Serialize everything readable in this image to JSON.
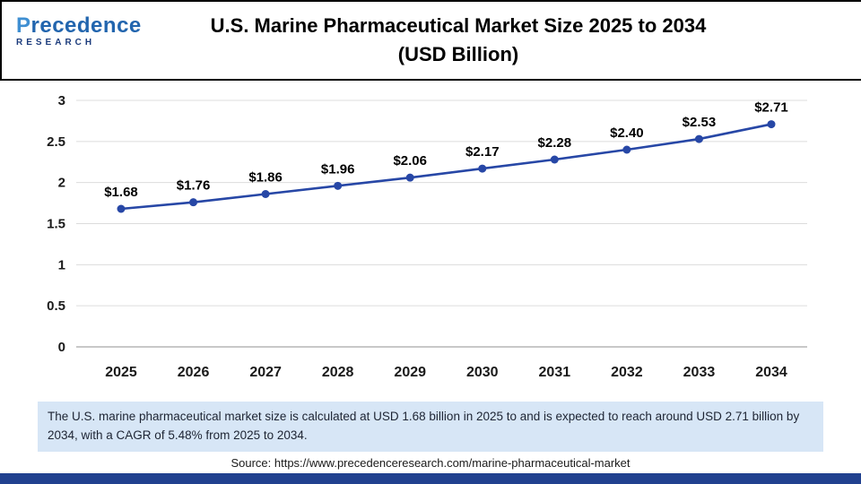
{
  "header": {
    "logo": {
      "name": "Precedence",
      "sub": "RESEARCH"
    },
    "title_line1": "U.S. Marine Pharmaceutical Market Size 2025 to 2034",
    "title_line2": "(USD Billion)"
  },
  "chart_data": {
    "type": "line",
    "title": "U.S. Marine Pharmaceutical Market Size 2025 to 2034 (USD Billion)",
    "categories": [
      "2025",
      "2026",
      "2027",
      "2028",
      "2029",
      "2030",
      "2031",
      "2032",
      "2033",
      "2034"
    ],
    "values": [
      1.68,
      1.76,
      1.86,
      1.96,
      2.06,
      2.17,
      2.28,
      2.4,
      2.53,
      2.71
    ],
    "point_labels": [
      "$1.68",
      "$1.76",
      "$1.86",
      "$1.96",
      "$2.06",
      "$2.17",
      "$2.28",
      "$2.40",
      "$2.53",
      "$2.71"
    ],
    "xlabel": "",
    "ylabel": "",
    "ylim": [
      0,
      3
    ],
    "yticks": [
      0,
      0.5,
      1,
      1.5,
      2,
      2.5,
      3
    ],
    "ytick_labels": [
      "0",
      "0.5",
      "1",
      "1.5",
      "2",
      "2.5",
      "3"
    ],
    "grid": true,
    "legend": "none",
    "line_color": "#2747a6",
    "marker": "circle"
  },
  "note": "The U.S. marine pharmaceutical market size is calculated at USD 1.68 billion in 2025 to and is expected to reach around USD 2.71 billion by 2034, with a CAGR of 5.48% from 2025 to 2034.",
  "source": "Source: https://www.precedenceresearch.com/marine-pharmaceutical-market",
  "colors": {
    "accent": "#2747a6",
    "note_bg": "#d7e6f6",
    "footer_bar": "#21418f"
  }
}
